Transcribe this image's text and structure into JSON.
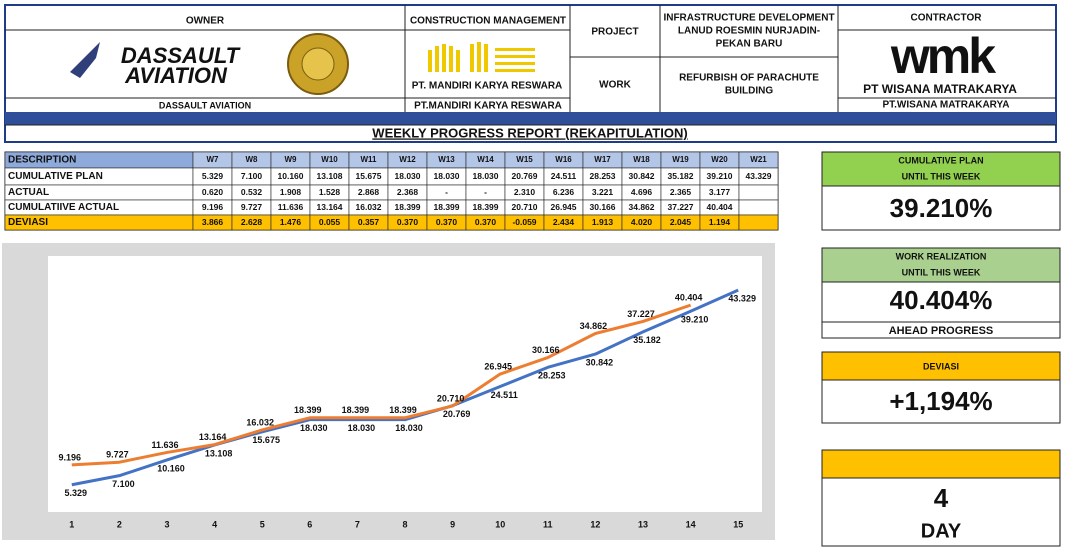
{
  "header": {
    "owner": {
      "title": "OWNER",
      "logo": [
        "DASSAULT",
        "AVIATION"
      ],
      "name": "DASSAULT AVIATION"
    },
    "construction_management": {
      "title": "CONSTRUCTION MANAGEMENT",
      "logo_name": "PT. MANDIRI KARYA RESWARA",
      "name": "PT.MANDIRI KARYA RESWARA"
    },
    "project": {
      "label": "PROJECT",
      "value": [
        "INFRASTRUCTURE DEVELOPMENT",
        "LANUD ROESMIN NURJADIN-",
        "PEKAN BARU"
      ]
    },
    "work": {
      "label": "WORK",
      "value": [
        "REFURBISH OF PARACHUTE",
        "BUILDING"
      ]
    },
    "contractor": {
      "title": "CONTRACTOR",
      "logo": "wmk",
      "logo_name": "PT WISANA MATRAKARYA",
      "name": "PT.WISANA MATRAKARYA"
    },
    "report_title": "WEEKLY PROGRESS REPORT (REKAPITULATION)"
  },
  "table": {
    "header": [
      "DESCRIPTION",
      "W7",
      "W8",
      "W9",
      "W10",
      "W11",
      "W12",
      "W13",
      "W14",
      "W15",
      "W16",
      "W17",
      "W18",
      "W19",
      "W20",
      "W21"
    ],
    "rows": [
      [
        "CUMULATIVE PLAN",
        "5.329",
        "7.100",
        "10.160",
        "13.108",
        "15.675",
        "18.030",
        "18.030",
        "18.030",
        "20.769",
        "24.511",
        "28.253",
        "30.842",
        "35.182",
        "39.210",
        "43.329"
      ],
      [
        "ACTUAL",
        "0.620",
        "0.532",
        "1.908",
        "1.528",
        "2.868",
        "2.368",
        "-",
        "-",
        "2.310",
        "6.236",
        "3.221",
        "4.696",
        "2.365",
        "3.177",
        null
      ],
      [
        "CUMULATIIVE ACTUAL",
        "9.196",
        "9.727",
        "11.636",
        "13.164",
        "16.032",
        "18.399",
        "18.399",
        "18.399",
        "20.710",
        "26.945",
        "30.166",
        "34.862",
        "37.227",
        "40.404",
        null
      ],
      [
        "DEVIASI",
        "3.866",
        "2.628",
        "1.476",
        "0.055",
        "0.357",
        "0.370",
        "0.370",
        "0.370",
        "-0.059",
        "2.434",
        "1.913",
        "4.020",
        "2.045",
        "1.194",
        null
      ]
    ]
  },
  "chart": {
    "type": "line",
    "x": [
      1,
      2,
      3,
      4,
      5,
      6,
      7,
      8,
      9,
      10,
      11,
      12,
      13,
      14,
      15
    ],
    "xlim": [
      0.5,
      15.5
    ],
    "ylim": [
      0,
      50
    ],
    "series": [
      {
        "color": "#4472c4",
        "values": [
          5.329,
          7.1,
          10.16,
          13.108,
          15.675,
          18.03,
          18.03,
          18.03,
          20.769,
          24.511,
          28.253,
          30.842,
          35.182,
          39.21,
          43.329
        ],
        "value_labels": [
          "5.329",
          "7.100",
          "10.160",
          "13.108",
          "15.675",
          "18.030",
          "18.030",
          "18.030",
          "20.769",
          "24.511",
          "28.253",
          "30.842",
          "35.182",
          "39.210",
          "43.329"
        ]
      },
      {
        "color": "#ed7d31",
        "values": [
          9.196,
          9.727,
          11.636,
          13.164,
          16.032,
          18.399,
          18.399,
          18.399,
          20.71,
          26.945,
          30.166,
          34.862,
          37.227,
          40.404,
          null
        ],
        "value_labels": [
          "9.196",
          "9.727",
          "11.636",
          "13.164",
          "16.032",
          "18.399",
          "18.399",
          "18.399",
          "20.710",
          "26.945",
          "30.166",
          "34.862",
          "37.227",
          "40.404",
          null
        ]
      }
    ]
  },
  "summary": [
    {
      "title": [
        "CUMULATIVE PLAN",
        "UNTIL THIS WEEK"
      ],
      "value": "39.210%"
    },
    {
      "title": [
        "WORK REALIZATION",
        "UNTIL THIS WEEK"
      ],
      "value": "40.404%",
      "note": "AHEAD PROGRESS"
    },
    {
      "title": [
        "DEVIASI"
      ],
      "value": "+1,194%"
    },
    {
      "value": "4",
      "unit": "DAY"
    }
  ]
}
